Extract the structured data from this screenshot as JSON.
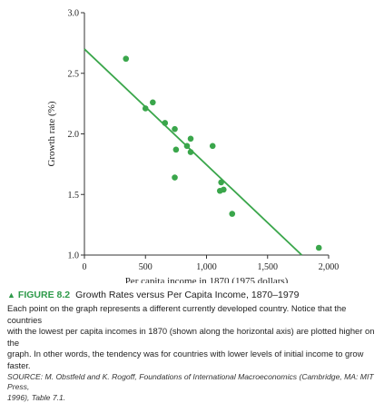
{
  "chart_data": {
    "type": "scatter",
    "xlabel": "Per capita income in 1870 (1975 dollars)",
    "ylabel": "Growth rate (%)",
    "xlim": [
      0,
      2000
    ],
    "ylim": [
      1.0,
      3.0
    ],
    "x_ticks": [
      "0",
      "500",
      "1,000",
      "1,500",
      "2,000"
    ],
    "x_tick_values": [
      0,
      500,
      1000,
      1500,
      2000
    ],
    "y_ticks": [
      "1.0",
      "1.5",
      "2.0",
      "2.5",
      "3.0"
    ],
    "y_tick_values": [
      1.0,
      1.5,
      2.0,
      2.5,
      3.0
    ],
    "points": [
      {
        "x": 340,
        "y": 2.62
      },
      {
        "x": 500,
        "y": 2.21
      },
      {
        "x": 560,
        "y": 2.26
      },
      {
        "x": 660,
        "y": 2.09
      },
      {
        "x": 740,
        "y": 2.04
      },
      {
        "x": 750,
        "y": 1.87
      },
      {
        "x": 740,
        "y": 1.64
      },
      {
        "x": 840,
        "y": 1.9
      },
      {
        "x": 870,
        "y": 1.96
      },
      {
        "x": 870,
        "y": 1.85
      },
      {
        "x": 1050,
        "y": 1.9
      },
      {
        "x": 1110,
        "y": 1.53
      },
      {
        "x": 1120,
        "y": 1.6
      },
      {
        "x": 1140,
        "y": 1.54
      },
      {
        "x": 1210,
        "y": 1.34
      },
      {
        "x": 1920,
        "y": 1.06
      }
    ],
    "trend_line": {
      "x": [
        0,
        1780
      ],
      "y": [
        2.7,
        1.0
      ]
    },
    "color": "#3aa64b",
    "grid": false
  },
  "caption": {
    "figure_number": "FIGURE 8.2",
    "figure_title": "Growth Rates versus Per Capita Income, 1870–1979",
    "description_lines": [
      "Each point on the graph represents a different currently developed country. Notice that the countries",
      "with the lowest per capita incomes in 1870 (shown along the horizontal axis) are plotted higher on the",
      "graph. In other words, the tendency was for countries with lower levels of initial income to grow faster."
    ],
    "source_lines": [
      "SOURCE: M. Obstfeld and K. Rogoff, Foundations of International Macroeconomics (Cambridge, MA: MIT Press,",
      "1996), Table 7.1."
    ]
  }
}
